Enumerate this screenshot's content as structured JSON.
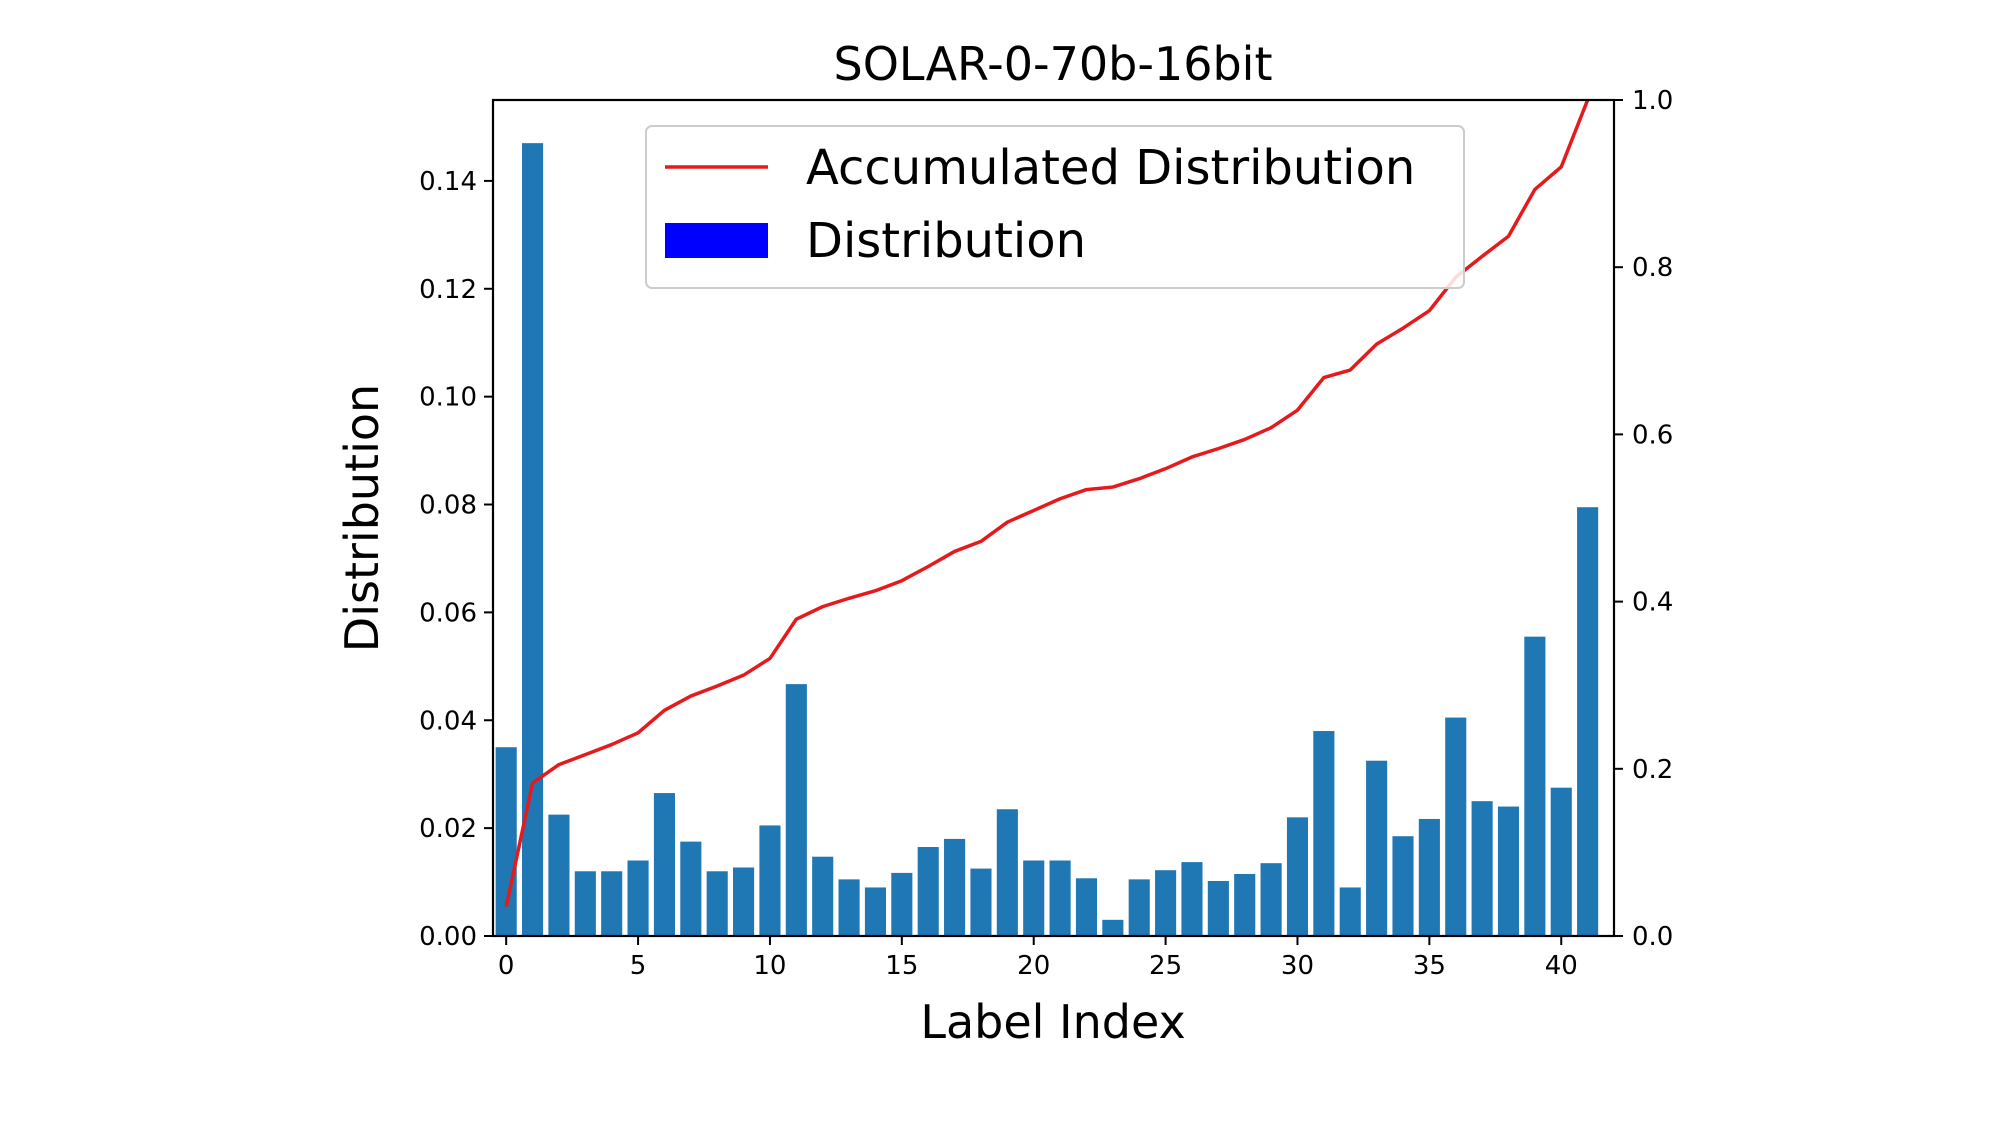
{
  "chart_data": {
    "type": "bar",
    "title": "SOLAR-0-70b-16bit",
    "xlabel": "Label Index",
    "ylabel": "Distribution",
    "xlim": [
      0,
      42
    ],
    "ylim": [
      0,
      0.155
    ],
    "y2lim": [
      0,
      1.0
    ],
    "x_ticks": [
      0,
      5,
      10,
      15,
      20,
      25,
      30,
      35,
      40
    ],
    "y_ticks": [
      0.0,
      0.02,
      0.04,
      0.06,
      0.08,
      0.1,
      0.12,
      0.14
    ],
    "y_tick_labels": [
      "0.00",
      "0.02",
      "0.04",
      "0.06",
      "0.08",
      "0.10",
      "0.12",
      "0.14"
    ],
    "y2_ticks": [
      0.0,
      0.2,
      0.4,
      0.6,
      0.8,
      1.0
    ],
    "y2_tick_labels": [
      "0.0",
      "0.2",
      "0.4",
      "0.6",
      "0.8",
      "1.0"
    ],
    "grid": false,
    "legend_position": "top-center",
    "colors": {
      "bar": "#1f77b4",
      "line": "#e41a1c",
      "legend_bar": "#0000ff"
    },
    "x": [
      0,
      1,
      2,
      3,
      4,
      5,
      6,
      7,
      8,
      9,
      10,
      11,
      12,
      13,
      14,
      15,
      16,
      17,
      18,
      19,
      20,
      21,
      22,
      23,
      24,
      25,
      26,
      27,
      28,
      29,
      30,
      31,
      32,
      33,
      34,
      35,
      36,
      37,
      38,
      39,
      40,
      41
    ],
    "series": [
      {
        "name": "Distribution",
        "type": "bar",
        "axis": "left",
        "values": [
          0.035,
          0.147,
          0.0225,
          0.012,
          0.012,
          0.014,
          0.0265,
          0.0175,
          0.012,
          0.0127,
          0.0205,
          0.0467,
          0.0147,
          0.0105,
          0.009,
          0.0117,
          0.0165,
          0.018,
          0.0125,
          0.0235,
          0.014,
          0.014,
          0.0107,
          0.003,
          0.0105,
          0.0122,
          0.0137,
          0.0102,
          0.0115,
          0.0135,
          0.022,
          0.038,
          0.009,
          0.0325,
          0.0185,
          0.0217,
          0.0405,
          0.025,
          0.024,
          0.0555,
          0.0275,
          0.0795
        ]
      },
      {
        "name": "Accumulated Distribution",
        "type": "line",
        "axis": "right",
        "values": [
          0.035,
          0.183,
          0.205,
          0.217,
          0.229,
          0.243,
          0.27,
          0.287,
          0.299,
          0.312,
          0.332,
          0.379,
          0.394,
          0.404,
          0.413,
          0.425,
          0.442,
          0.46,
          0.472,
          0.495,
          0.509,
          0.523,
          0.534,
          0.537,
          0.547,
          0.559,
          0.573,
          0.583,
          0.594,
          0.608,
          0.629,
          0.668,
          0.677,
          0.708,
          0.727,
          0.748,
          0.788,
          0.813,
          0.837,
          0.893,
          0.92,
          1.0
        ]
      }
    ]
  }
}
